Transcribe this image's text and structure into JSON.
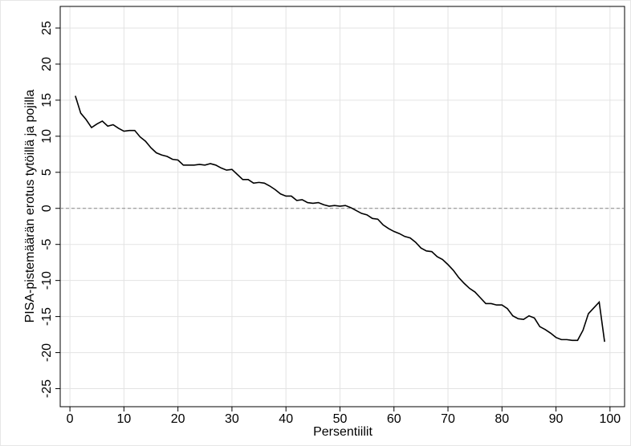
{
  "chart_data": {
    "type": "line",
    "x_label": "Persentiilit",
    "y_label": "PISA-pistemäärän erotus tytöillä ja pojilla",
    "x": [
      1,
      2,
      3,
      4,
      5,
      6,
      7,
      8,
      9,
      10,
      11,
      12,
      13,
      14,
      15,
      16,
      17,
      18,
      19,
      20,
      21,
      22,
      23,
      24,
      25,
      26,
      27,
      28,
      29,
      30,
      31,
      32,
      33,
      34,
      35,
      36,
      37,
      38,
      39,
      40,
      41,
      42,
      43,
      44,
      45,
      46,
      47,
      48,
      49,
      50,
      51,
      52,
      53,
      54,
      55,
      56,
      57,
      58,
      59,
      60,
      61,
      62,
      63,
      64,
      65,
      66,
      67,
      68,
      69,
      70,
      71,
      72,
      73,
      74,
      75,
      76,
      77,
      78,
      79,
      80,
      81,
      82,
      83,
      84,
      85,
      86,
      87,
      88,
      89,
      90,
      91,
      92,
      93,
      94,
      95,
      96,
      97,
      98,
      99
    ],
    "series": [
      {
        "color": "#000000",
        "values": [
          15.6,
          13.2,
          12.3,
          11.2,
          11.7,
          12.1,
          11.4,
          11.6,
          11.1,
          10.7,
          10.8,
          10.8,
          9.9,
          9.3,
          8.4,
          7.7,
          7.4,
          7.2,
          6.8,
          6.7,
          6.0,
          6.0,
          6.0,
          6.1,
          6.0,
          6.2,
          6.0,
          5.6,
          5.3,
          5.4,
          4.7,
          4.0,
          4.0,
          3.5,
          3.6,
          3.5,
          3.1,
          2.6,
          2.0,
          1.7,
          1.7,
          1.1,
          1.2,
          0.8,
          0.7,
          0.8,
          0.5,
          0.3,
          0.4,
          0.3,
          0.4,
          0.1,
          -0.3,
          -0.7,
          -0.9,
          -1.4,
          -1.5,
          -2.3,
          -2.8,
          -3.2,
          -3.5,
          -3.9,
          -4.1,
          -4.7,
          -5.5,
          -5.9,
          -6.0,
          -6.7,
          -7.1,
          -7.8,
          -8.6,
          -9.6,
          -10.4,
          -11.1,
          -11.6,
          -12.4,
          -13.2,
          -13.2,
          -13.4,
          -13.4,
          -13.9,
          -14.9,
          -15.3,
          -15.4,
          -14.9,
          -15.2,
          -16.4,
          -16.8,
          -17.3,
          -17.9,
          -18.2,
          -18.2,
          -18.3,
          -18.3,
          -16.9,
          -14.6,
          -13.8,
          -13.0,
          -18.5
        ]
      }
    ],
    "reference_line": 0,
    "xlim": [
      -1.8,
      102.7
    ],
    "ylim": [
      -27.5,
      28
    ],
    "xticks": [
      0,
      10,
      20,
      30,
      40,
      50,
      60,
      70,
      80,
      90,
      100
    ],
    "yticks": [
      -25,
      -20,
      -15,
      -10,
      -5,
      0,
      5,
      10,
      15,
      20,
      25
    ],
    "grid": true
  }
}
